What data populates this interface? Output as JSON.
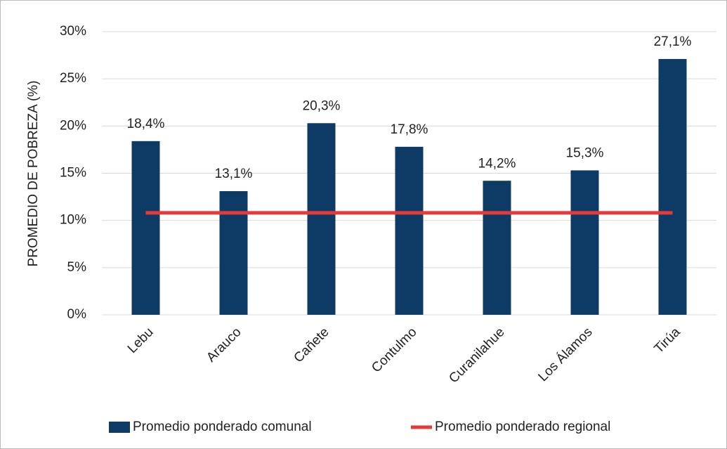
{
  "chart_data": {
    "type": "bar",
    "y_label": "PROMEDIO DE POBREZA (%)",
    "categories": [
      "Lebu",
      "Arauco",
      "Cañete",
      "Contulmo",
      "Curanilahue",
      "Los Álamos",
      "Tirúa"
    ],
    "series": [
      {
        "name": "Promedio ponderado comunal",
        "type": "bar",
        "color": "#0e3a66",
        "values": [
          18.4,
          13.1,
          20.3,
          17.8,
          14.2,
          15.3,
          27.1
        ],
        "value_labels": [
          "18,4%",
          "13,1%",
          "20,3%",
          "17,8%",
          "14,2%",
          "15,3%",
          "27,1%"
        ]
      },
      {
        "name": "Promedio ponderado regional",
        "type": "line",
        "color": "#e63a3a",
        "values": [
          10.8,
          10.8,
          10.8,
          10.8,
          10.8,
          10.8,
          10.8
        ]
      }
    ],
    "ylim": [
      0,
      30
    ],
    "yticks": [
      {
        "value": 0,
        "label": "0%"
      },
      {
        "value": 5,
        "label": "5%"
      },
      {
        "value": 10,
        "label": "10%"
      },
      {
        "value": 15,
        "label": "15%"
      },
      {
        "value": 20,
        "label": "20%"
      },
      {
        "value": 25,
        "label": "25%"
      },
      {
        "value": 30,
        "label": "30%"
      }
    ],
    "grid": true,
    "legend": "bottom"
  }
}
